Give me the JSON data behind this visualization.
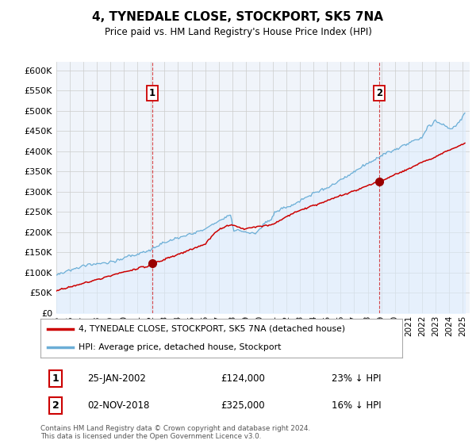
{
  "title": "4, TYNEDALE CLOSE, STOCKPORT, SK5 7NA",
  "subtitle": "Price paid vs. HM Land Registry's House Price Index (HPI)",
  "ytick_values": [
    0,
    50000,
    100000,
    150000,
    200000,
    250000,
    300000,
    350000,
    400000,
    450000,
    500000,
    550000,
    600000
  ],
  "ylim": [
    0,
    620000
  ],
  "xlim_start": 1995.0,
  "xlim_end": 2025.5,
  "sale1_x": 2002.07,
  "sale1_y": 124000,
  "sale2_x": 2018.84,
  "sale2_y": 325000,
  "vline1_x": 2002.07,
  "vline2_x": 2018.84,
  "legend_line1": "4, TYNEDALE CLOSE, STOCKPORT, SK5 7NA (detached house)",
  "legend_line2": "HPI: Average price, detached house, Stockport",
  "annotation1_num": "1",
  "annotation1_date": "25-JAN-2002",
  "annotation1_price": "£124,000",
  "annotation1_hpi": "23% ↓ HPI",
  "annotation2_num": "2",
  "annotation2_date": "02-NOV-2018",
  "annotation2_price": "£325,000",
  "annotation2_hpi": "16% ↓ HPI",
  "footer": "Contains HM Land Registry data © Crown copyright and database right 2024.\nThis data is licensed under the Open Government Licence v3.0.",
  "hpi_line_color": "#6baed6",
  "hpi_fill_color": "#ddeeff",
  "price_line_color": "#cc0000",
  "vline_color": "#cc0000",
  "sale_marker_color": "#990000",
  "background_color": "#ffffff",
  "chart_bg_color": "#f0f4fa",
  "grid_color": "#cccccc"
}
